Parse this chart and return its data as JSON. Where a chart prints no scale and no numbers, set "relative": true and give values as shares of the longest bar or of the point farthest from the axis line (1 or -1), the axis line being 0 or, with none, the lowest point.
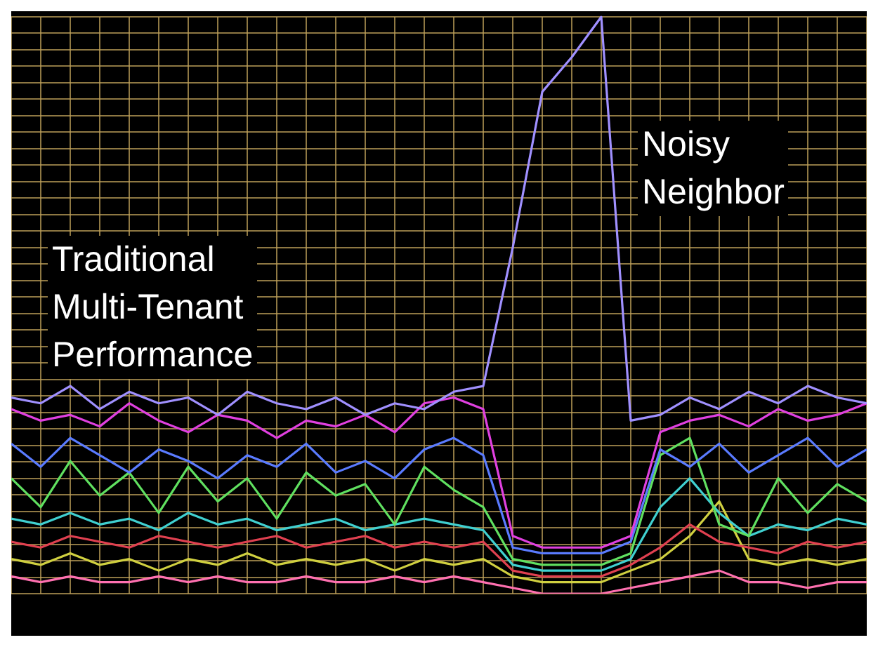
{
  "chart_data": {
    "type": "line",
    "relative": true,
    "grid": true,
    "legend": false,
    "marker": "none",
    "line_style": "solid",
    "categories": [
      null,
      null,
      null,
      null,
      null,
      null,
      null,
      null,
      null,
      null,
      null,
      null,
      null,
      null,
      null,
      null,
      null,
      null,
      null,
      null,
      null,
      null,
      null,
      null,
      null,
      null,
      null,
      null,
      null,
      null
    ],
    "annotations": [
      "Traditional\nMulti-Tenant\nPerformance",
      "Noisy\nNeighbor"
    ],
    "series": [
      {
        "color": "#a090ff",
        "values": [
          0.34,
          0.33,
          0.36,
          0.32,
          0.35,
          0.33,
          0.34,
          0.31,
          0.35,
          0.33,
          0.32,
          0.34,
          0.31,
          0.33,
          0.32,
          0.35,
          0.36,
          0.6,
          0.87,
          0.93,
          1,
          0.3,
          0.31,
          0.34,
          0.32,
          0.35,
          0.33,
          0.36,
          0.34,
          0.33
        ]
      },
      {
        "color": "#e040e0",
        "values": [
          0.32,
          0.3,
          0.31,
          0.29,
          0.33,
          0.3,
          0.28,
          0.31,
          0.3,
          0.27,
          0.3,
          0.29,
          0.31,
          0.28,
          0.33,
          0.34,
          0.32,
          0.1,
          0.08,
          0.08,
          0.08,
          0.1,
          0.28,
          0.3,
          0.31,
          0.29,
          0.32,
          0.3,
          0.31,
          0.33
        ]
      },
      {
        "color": "#5a7bff",
        "values": [
          0.26,
          0.22,
          0.27,
          0.24,
          0.21,
          0.25,
          0.23,
          0.2,
          0.24,
          0.22,
          0.26,
          0.21,
          0.23,
          0.2,
          0.25,
          0.27,
          0.24,
          0.08,
          0.07,
          0.07,
          0.07,
          0.09,
          0.25,
          0.22,
          0.26,
          0.21,
          0.24,
          0.27,
          0.22,
          0.25
        ]
      },
      {
        "color": "#60e060",
        "values": [
          0.2,
          0.15,
          0.23,
          0.17,
          0.21,
          0.14,
          0.22,
          0.16,
          0.2,
          0.13,
          0.21,
          0.17,
          0.19,
          0.12,
          0.22,
          0.18,
          0.15,
          0.06,
          0.05,
          0.05,
          0.05,
          0.07,
          0.24,
          0.27,
          0.12,
          0.1,
          0.2,
          0.14,
          0.19,
          0.16
        ]
      },
      {
        "color": "#40d0d0",
        "values": [
          0.13,
          0.12,
          0.14,
          0.12,
          0.13,
          0.11,
          0.14,
          0.12,
          0.13,
          0.11,
          0.12,
          0.13,
          0.11,
          0.12,
          0.13,
          0.12,
          0.11,
          0.05,
          0.04,
          0.04,
          0.04,
          0.06,
          0.15,
          0.2,
          0.14,
          0.1,
          0.12,
          0.11,
          0.13,
          0.12
        ]
      },
      {
        "color": "#e04050",
        "values": [
          0.09,
          0.08,
          0.1,
          0.09,
          0.08,
          0.1,
          0.09,
          0.08,
          0.09,
          0.1,
          0.08,
          0.09,
          0.1,
          0.08,
          0.09,
          0.08,
          0.09,
          0.04,
          0.03,
          0.03,
          0.03,
          0.05,
          0.08,
          0.12,
          0.09,
          0.08,
          0.07,
          0.09,
          0.08,
          0.09
        ]
      },
      {
        "color": "#d0d040",
        "values": [
          0.06,
          0.05,
          0.07,
          0.05,
          0.06,
          0.04,
          0.06,
          0.05,
          0.07,
          0.05,
          0.06,
          0.05,
          0.06,
          0.04,
          0.06,
          0.05,
          0.06,
          0.03,
          0.02,
          0.02,
          0.02,
          0.04,
          0.06,
          0.1,
          0.16,
          0.06,
          0.05,
          0.06,
          0.05,
          0.06
        ]
      },
      {
        "color": "#ff70b0",
        "values": [
          0.03,
          0.02,
          0.03,
          0.02,
          0.02,
          0.03,
          0.02,
          0.03,
          0.02,
          0.02,
          0.03,
          0.02,
          0.02,
          0.03,
          0.02,
          0.03,
          0.02,
          0.01,
          0,
          0,
          0,
          0.01,
          0.02,
          0.03,
          0.04,
          0.02,
          0.02,
          0.01,
          0.02,
          0.02
        ]
      }
    ]
  }
}
